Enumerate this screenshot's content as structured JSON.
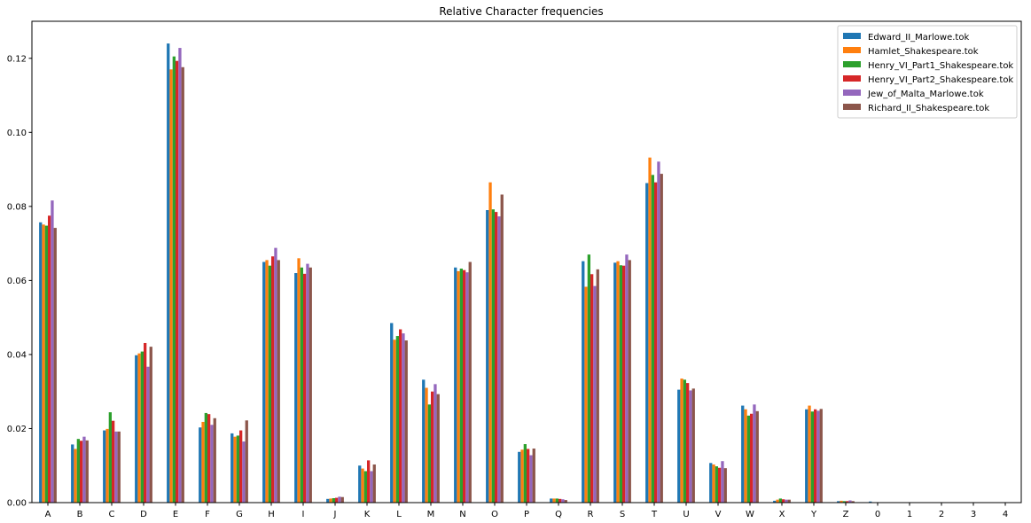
{
  "chart_data": {
    "type": "bar",
    "title": "Relative Character frequencies",
    "xlabel": "",
    "ylabel": "",
    "ylim": [
      0,
      0.13
    ],
    "yticks": [
      0.0,
      0.02,
      0.04,
      0.06,
      0.08,
      0.1,
      0.12
    ],
    "ytick_labels": [
      "0.00",
      "0.02",
      "0.04",
      "0.06",
      "0.08",
      "0.10",
      "0.12"
    ],
    "legend_position": "top-right",
    "grid": false,
    "categories": [
      "A",
      "B",
      "C",
      "D",
      "E",
      "F",
      "G",
      "H",
      "I",
      "J",
      "K",
      "L",
      "M",
      "N",
      "O",
      "P",
      "Q",
      "R",
      "S",
      "T",
      "U",
      "V",
      "W",
      "X",
      "Y",
      "Z",
      "0",
      "1",
      "2",
      "3",
      "4"
    ],
    "series": [
      {
        "name": "Edward_II_Marlowe.tok",
        "color": "#1f77b4",
        "values": [
          0.0757,
          0.0157,
          0.0195,
          0.0398,
          0.124,
          0.0203,
          0.0187,
          0.065,
          0.062,
          0.001,
          0.01,
          0.0485,
          0.0332,
          0.0635,
          0.079,
          0.0137,
          0.0011,
          0.0652,
          0.0648,
          0.0863,
          0.0305,
          0.0107,
          0.0262,
          0.0005,
          0.0252,
          0.0004,
          0.0003,
          0.0,
          0.0,
          0.0,
          0.0
        ]
      },
      {
        "name": "Hamlet_Shakespeare.tok",
        "color": "#ff7f0e",
        "values": [
          0.0751,
          0.0145,
          0.0199,
          0.0403,
          0.117,
          0.0218,
          0.0178,
          0.0655,
          0.066,
          0.0011,
          0.0092,
          0.044,
          0.031,
          0.0625,
          0.0865,
          0.0143,
          0.0011,
          0.0583,
          0.0652,
          0.0932,
          0.0335,
          0.0103,
          0.0252,
          0.0008,
          0.0262,
          0.0005,
          0.0,
          0.0,
          0.0,
          0.0,
          0.0
        ]
      },
      {
        "name": "Henry_VI_Part1_Shakespeare.tok",
        "color": "#2ca02c",
        "values": [
          0.0748,
          0.0172,
          0.0244,
          0.0408,
          0.1205,
          0.0242,
          0.0181,
          0.064,
          0.0635,
          0.0012,
          0.0085,
          0.045,
          0.0265,
          0.0632,
          0.0792,
          0.0158,
          0.0011,
          0.067,
          0.0641,
          0.0885,
          0.0332,
          0.0098,
          0.0235,
          0.0011,
          0.0246,
          0.0004,
          0.0,
          0.0,
          0.0,
          0.0,
          0.0
        ]
      },
      {
        "name": "Henry_VI_Part2_Shakespeare.tok",
        "color": "#d62728",
        "values": [
          0.0775,
          0.0167,
          0.0221,
          0.0431,
          0.1193,
          0.0239,
          0.0195,
          0.0665,
          0.0618,
          0.0013,
          0.0114,
          0.0468,
          0.03,
          0.0628,
          0.0785,
          0.0145,
          0.001,
          0.0617,
          0.064,
          0.0865,
          0.0323,
          0.0094,
          0.024,
          0.0009,
          0.0252,
          0.0004,
          0.0,
          0.0,
          0.0,
          0.0,
          0.0
        ]
      },
      {
        "name": "Jew_of_Malta_Marlowe.tok",
        "color": "#9467bd",
        "values": [
          0.0816,
          0.0178,
          0.0192,
          0.0367,
          0.1228,
          0.021,
          0.0165,
          0.0688,
          0.0645,
          0.0016,
          0.0085,
          0.0457,
          0.032,
          0.0622,
          0.0773,
          0.0128,
          0.0009,
          0.0585,
          0.067,
          0.0921,
          0.0303,
          0.0112,
          0.0265,
          0.0008,
          0.0248,
          0.0006,
          0.0,
          0.0,
          0.0,
          0.0,
          0.0
        ]
      },
      {
        "name": "Richard_II_Shakespeare.tok",
        "color": "#8c564b",
        "values": [
          0.0742,
          0.0168,
          0.0192,
          0.0421,
          0.1176,
          0.0228,
          0.0222,
          0.0655,
          0.0635,
          0.0015,
          0.0103,
          0.0438,
          0.0293,
          0.065,
          0.0832,
          0.0146,
          0.0007,
          0.063,
          0.0655,
          0.0888,
          0.0308,
          0.0093,
          0.0247,
          0.0008,
          0.0253,
          0.0004,
          0.0,
          0.0,
          0.0,
          0.0,
          0.0
        ]
      }
    ]
  }
}
